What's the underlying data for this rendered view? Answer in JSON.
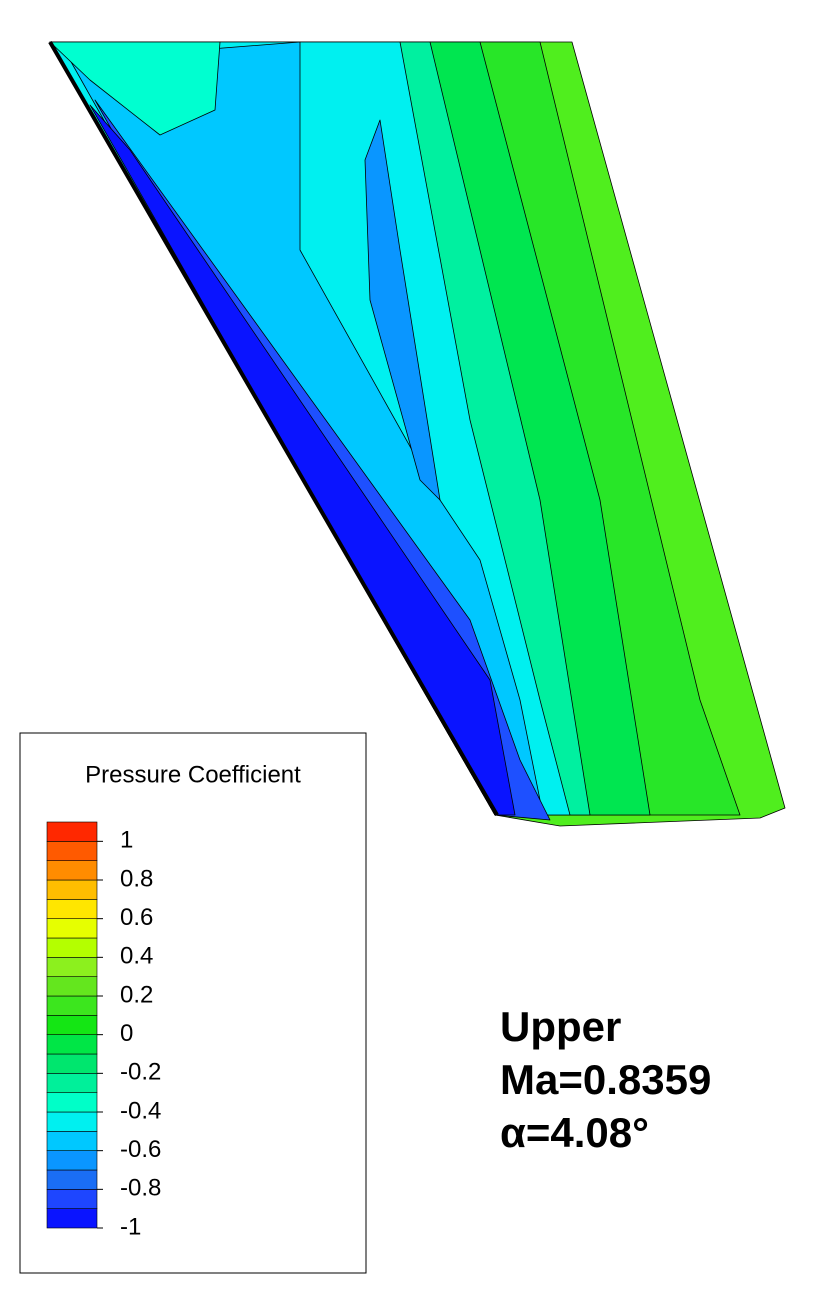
{
  "chart_data": {
    "type": "contour",
    "legend_title": "Pressure Coefficient",
    "levels": [
      -1,
      -0.9,
      -0.8,
      -0.7,
      -0.6,
      -0.5,
      -0.4,
      -0.3,
      -0.2,
      -0.1,
      0,
      0.1,
      0.2,
      0.3,
      0.4,
      0.5,
      0.6,
      0.7,
      0.8,
      0.9,
      1,
      1.1
    ],
    "colors": [
      "#0a14ff",
      "#1e46ff",
      "#1a6ef5",
      "#0a96ff",
      "#00c8ff",
      "#00f0f0",
      "#00ffc8",
      "#00f09a",
      "#00e66e",
      "#00e646",
      "#14e614",
      "#3ce61e",
      "#64e61e",
      "#8cf01e",
      "#b4ff00",
      "#e6ff00",
      "#ffe600",
      "#ffbe00",
      "#ff8c00",
      "#ff5a00",
      "#ff2800"
    ],
    "clim": [
      -1,
      1.1
    ],
    "ticks": [
      1,
      0.8,
      0.6,
      0.4,
      0.2,
      0,
      -0.2,
      -0.4,
      -0.6,
      -0.8,
      -1
    ],
    "annotation": [
      "Upper",
      "Ma=0.8359",
      "α=4.08°"
    ]
  }
}
